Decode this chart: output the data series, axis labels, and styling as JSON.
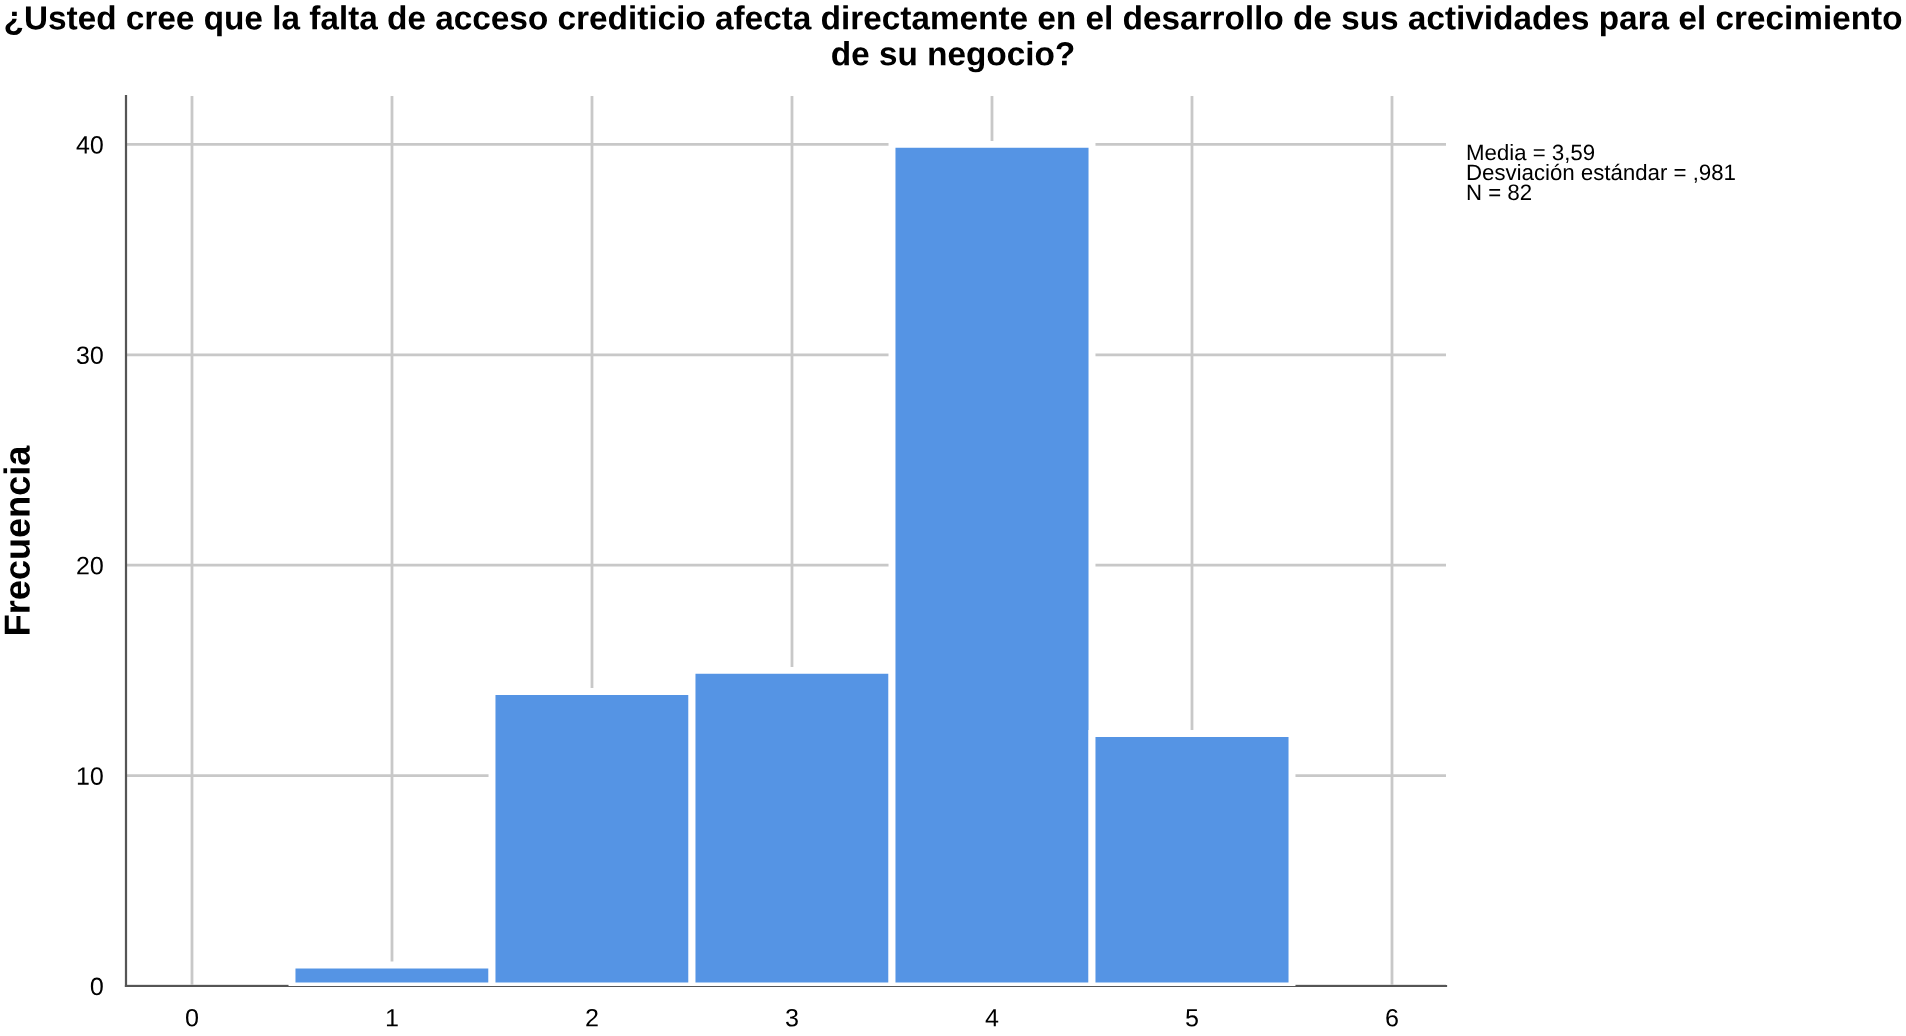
{
  "chart_data": {
    "type": "histogram",
    "title": "¿Usted cree que la falta de acceso crediticio afecta directamente en el desarrollo de sus actividades para el crecimiento de su negocio?",
    "ylabel": "Frecuencia",
    "bins": [
      0.5,
      1.5,
      2.5,
      3.5,
      4.5,
      5.5
    ],
    "values": [
      1,
      14,
      15,
      40,
      12
    ],
    "color": "#5594e4",
    "xlim": [
      -0.33,
      6.27
    ],
    "ylim": [
      0,
      42.3
    ],
    "xticks": [
      0,
      1,
      2,
      3,
      4,
      5,
      6
    ],
    "yticks": [
      0,
      10,
      20,
      30,
      40
    ],
    "grid": true,
    "annotations": [
      "Media = 3,59\nDesviación estándar = ,981\nN = 82"
    ]
  }
}
